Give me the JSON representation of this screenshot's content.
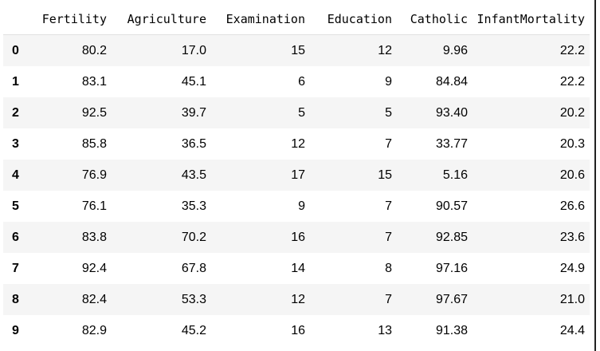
{
  "table": {
    "index_header": "",
    "columns": [
      "Fertility",
      "Agriculture",
      "Examination",
      "Education",
      "Catholic",
      "InfantMortality"
    ],
    "rows": [
      {
        "index": "0",
        "cells": [
          "80.2",
          "17.0",
          "15",
          "12",
          "9.96",
          "22.2"
        ]
      },
      {
        "index": "1",
        "cells": [
          "83.1",
          "45.1",
          "6",
          "9",
          "84.84",
          "22.2"
        ]
      },
      {
        "index": "2",
        "cells": [
          "92.5",
          "39.7",
          "5",
          "5",
          "93.40",
          "20.2"
        ]
      },
      {
        "index": "3",
        "cells": [
          "85.8",
          "36.5",
          "12",
          "7",
          "33.77",
          "20.3"
        ]
      },
      {
        "index": "4",
        "cells": [
          "76.9",
          "43.5",
          "17",
          "15",
          "5.16",
          "20.6"
        ]
      },
      {
        "index": "5",
        "cells": [
          "76.1",
          "35.3",
          "9",
          "7",
          "90.57",
          "26.6"
        ]
      },
      {
        "index": "6",
        "cells": [
          "83.8",
          "70.2",
          "16",
          "7",
          "92.85",
          "23.6"
        ]
      },
      {
        "index": "7",
        "cells": [
          "92.4",
          "67.8",
          "14",
          "8",
          "97.16",
          "24.9"
        ]
      },
      {
        "index": "8",
        "cells": [
          "82.4",
          "53.3",
          "12",
          "7",
          "97.67",
          "21.0"
        ]
      },
      {
        "index": "9",
        "cells": [
          "82.9",
          "45.2",
          "16",
          "13",
          "91.38",
          "24.4"
        ]
      }
    ]
  },
  "colors": {
    "stripe": "#f5f5f5",
    "header_rule": "#e0e0e0",
    "text": "#000000"
  }
}
